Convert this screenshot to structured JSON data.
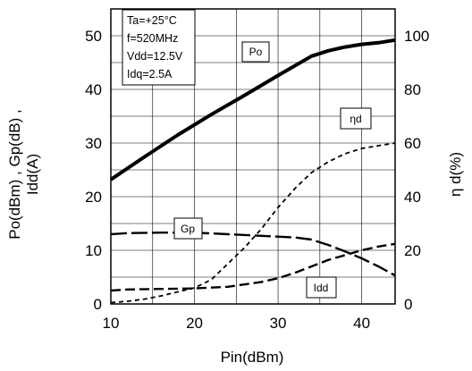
{
  "chart_data": {
    "type": "line",
    "xlabel": "Pin(dBm)",
    "ylabel_left": [
      "Po(dBm) , Gp(dB) ,",
      "Idd(A)"
    ],
    "ylabel_right": "η d(%)",
    "xlim": [
      10,
      44
    ],
    "ylim_left": [
      0,
      55
    ],
    "ylim_right": [
      0,
      110
    ],
    "x_ticks": [
      10,
      20,
      30,
      40
    ],
    "y_ticks_left": [
      0,
      10,
      20,
      30,
      40,
      50
    ],
    "y_ticks_right": [
      0,
      20,
      40,
      60,
      80,
      100
    ],
    "grid": true,
    "conditions": [
      "Ta=+25°C",
      "f=520MHz",
      "Vdd=12.5V",
      "Idq=2.5A"
    ],
    "series": [
      {
        "name": "Po",
        "axis": "left",
        "style": "solid-thick",
        "x": [
          10,
          14,
          18,
          22,
          26,
          30,
          34,
          36,
          38,
          40,
          42,
          44
        ],
        "y": [
          23.2,
          27.4,
          31.5,
          35.3,
          38.9,
          42.6,
          46.2,
          47.2,
          47.9,
          48.4,
          48.7,
          49.2
        ]
      },
      {
        "name": "Gp",
        "axis": "left",
        "style": "long-dash",
        "x": [
          10,
          12,
          16,
          20,
          24,
          28,
          32,
          34,
          36,
          38,
          40,
          42,
          44
        ],
        "y": [
          13.0,
          13.2,
          13.3,
          13.3,
          13.0,
          12.7,
          12.4,
          12.0,
          11.0,
          9.8,
          8.5,
          7.0,
          5.3
        ]
      },
      {
        "name": "Idd",
        "axis": "left",
        "style": "dash",
        "x": [
          10,
          12,
          16,
          20,
          24,
          28,
          30,
          32,
          34,
          36,
          38,
          40,
          42,
          44
        ],
        "y": [
          2.5,
          2.7,
          2.8,
          2.9,
          3.2,
          4.1,
          4.8,
          5.8,
          7.0,
          8.2,
          9.1,
          10.0,
          10.7,
          11.2
        ]
      },
      {
        "name": "ηd",
        "axis": "right",
        "style": "short-dash",
        "x": [
          10,
          12,
          14,
          16,
          18,
          20,
          22,
          24,
          26,
          28,
          30,
          32,
          34,
          36,
          38,
          40,
          42,
          44
        ],
        "y": [
          0.5,
          1.0,
          1.8,
          3.0,
          4.5,
          6.0,
          9.0,
          15.0,
          21.0,
          28.0,
          36.0,
          43.0,
          49.0,
          53.0,
          56.0,
          58.0,
          59.0,
          60.0
        ]
      }
    ]
  }
}
